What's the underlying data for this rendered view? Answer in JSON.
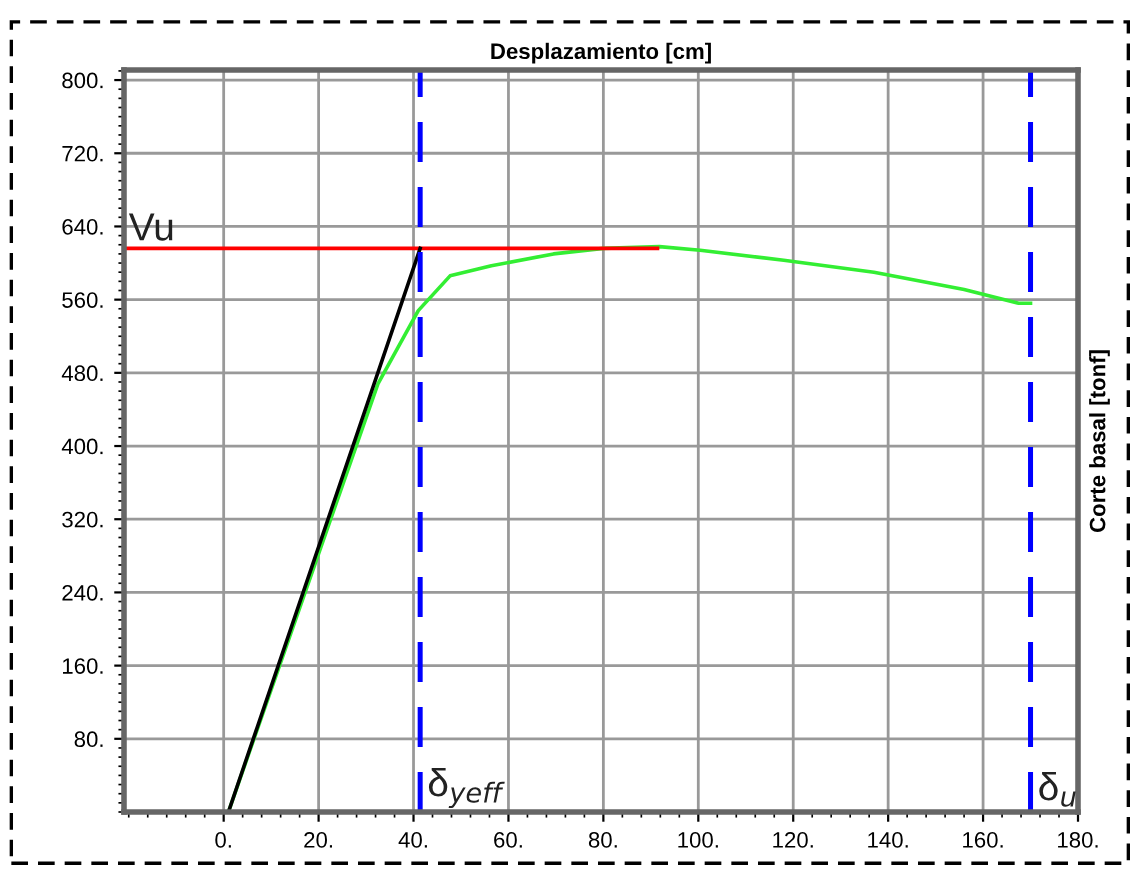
{
  "chart_data": {
    "type": "line",
    "xlabel": "Desplazamiento [cm]",
    "ylabel": "Corte basal [tonf]",
    "xlim": [
      -21,
      180
    ],
    "ylim": [
      0,
      811
    ],
    "xticks": [
      {
        "value": 0,
        "label": "0."
      },
      {
        "value": 20,
        "label": "20."
      },
      {
        "value": 40,
        "label": "40."
      },
      {
        "value": 60,
        "label": "60."
      },
      {
        "value": 80,
        "label": "80."
      },
      {
        "value": 100,
        "label": "100."
      },
      {
        "value": 120,
        "label": "120."
      },
      {
        "value": 140,
        "label": "140."
      },
      {
        "value": 160,
        "label": "160."
      },
      {
        "value": 180,
        "label": "180."
      }
    ],
    "yticks": [
      {
        "value": 80,
        "label": "80."
      },
      {
        "value": 160,
        "label": "160."
      },
      {
        "value": 240,
        "label": "240."
      },
      {
        "value": 320,
        "label": "320."
      },
      {
        "value": 400,
        "label": "400."
      },
      {
        "value": 480,
        "label": "480."
      },
      {
        "value": 560,
        "label": "560."
      },
      {
        "value": 640,
        "label": "640."
      },
      {
        "value": 720,
        "label": "720."
      },
      {
        "value": 800,
        "label": "800."
      }
    ],
    "grid": true,
    "legend": false,
    "series": [
      {
        "color": "#33ee33",
        "x": [
          1,
          32.5,
          41,
          47.7,
          56.4,
          69.5,
          80,
          91.8,
          100.4,
          118,
          137,
          156,
          167.5,
          170
        ],
        "values": [
          0,
          468,
          548,
          586,
          597,
          610,
          616,
          618,
          614,
          603,
          590,
          571,
          556,
          556
        ]
      },
      {
        "color": "#ff0000",
        "x": [
          -21,
          91.4
        ],
        "values": [
          616,
          616
        ]
      },
      {
        "color": "#000000",
        "x": [
          1,
          41.4
        ],
        "values": [
          0,
          616
        ]
      }
    ],
    "ref_lines": [
      {
        "axis": "x",
        "value": 41.4,
        "label": "δ$_{yeff}$",
        "color": "#0000ff",
        "line_style": "dashed"
      },
      {
        "axis": "x",
        "value": 170,
        "label": "δ$_{u}$",
        "color": "#0000ff",
        "line_style": "dashed"
      }
    ],
    "annotations": [
      {
        "text": "Vu",
        "x": -20,
        "y": 616
      }
    ]
  }
}
